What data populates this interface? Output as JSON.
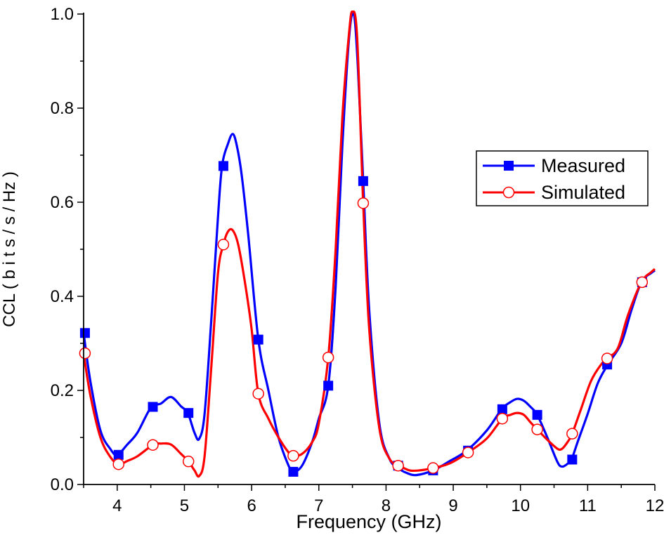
{
  "chart_data": {
    "type": "line",
    "title": "",
    "xlabel": "Frequency (GHz)",
    "ylabel": "CCL ( b i t s / s / Hz )",
    "xlim": [
      3.5,
      12
    ],
    "ylim": [
      0,
      1.0
    ],
    "x_ticks": [
      4,
      5,
      6,
      7,
      8,
      9,
      10,
      11,
      12
    ],
    "y_ticks": [
      0.0,
      0.2,
      0.4,
      0.6,
      0.8,
      1.0
    ],
    "x_tick_labels": [
      "4",
      "5",
      "6",
      "7",
      "8",
      "9",
      "10",
      "11",
      "12"
    ],
    "y_tick_labels": [
      "0.0",
      "0.2",
      "0.4",
      "0.6",
      "0.8",
      "1.0"
    ],
    "legend_position": "right",
    "grid": false,
    "series": [
      {
        "name": "Measured",
        "color": "#0000ff",
        "marker": "square",
        "x": [
          3.5,
          3.6,
          3.75,
          3.9,
          4.0,
          4.15,
          4.3,
          4.5,
          4.65,
          4.8,
          4.95,
          5.05,
          5.15,
          5.22,
          5.3,
          5.4,
          5.5,
          5.56,
          5.65,
          5.72,
          5.78,
          5.85,
          5.95,
          6.1,
          6.25,
          6.4,
          6.55,
          6.62,
          6.75,
          6.9,
          7.0,
          7.14,
          7.25,
          7.35,
          7.45,
          7.52,
          7.58,
          7.66,
          7.75,
          7.9,
          8.05,
          8.18,
          8.3,
          8.45,
          8.7,
          8.95,
          9.2,
          9.5,
          9.72,
          9.85,
          9.95,
          10.05,
          10.15,
          10.25,
          10.4,
          10.55,
          10.62,
          10.7,
          10.76,
          10.85,
          11.0,
          11.15,
          11.3,
          11.5,
          11.65,
          11.8,
          11.95,
          12.0
        ],
        "y": [
          0.322,
          0.22,
          0.115,
          0.075,
          0.063,
          0.085,
          0.11,
          0.163,
          0.172,
          0.186,
          0.166,
          0.152,
          0.11,
          0.097,
          0.15,
          0.35,
          0.57,
          0.677,
          0.725,
          0.745,
          0.72,
          0.66,
          0.53,
          0.308,
          0.2,
          0.1,
          0.04,
          0.027,
          0.04,
          0.09,
          0.14,
          0.21,
          0.42,
          0.72,
          0.95,
          1.0,
          0.89,
          0.645,
          0.37,
          0.13,
          0.055,
          0.035,
          0.025,
          0.02,
          0.03,
          0.05,
          0.072,
          0.115,
          0.16,
          0.175,
          0.182,
          0.178,
          0.165,
          0.148,
          0.1,
          0.048,
          0.038,
          0.044,
          0.053,
          0.09,
          0.15,
          0.215,
          0.255,
          0.3,
          0.37,
          0.43,
          0.45,
          0.455
        ]
      },
      {
        "name": "Simulated",
        "color": "#ff0000",
        "marker": "circle",
        "x": [
          3.5,
          3.6,
          3.75,
          3.9,
          4.02,
          4.15,
          4.3,
          4.53,
          4.65,
          4.8,
          4.95,
          5.06,
          5.15,
          5.22,
          5.3,
          5.4,
          5.5,
          5.58,
          5.65,
          5.72,
          5.8,
          5.9,
          6.0,
          6.1,
          6.25,
          6.4,
          6.55,
          6.62,
          6.75,
          6.9,
          7.0,
          7.14,
          7.25,
          7.35,
          7.45,
          7.5,
          7.57,
          7.66,
          7.75,
          7.9,
          8.05,
          8.2,
          8.35,
          8.5,
          8.7,
          8.95,
          9.22,
          9.5,
          9.73,
          9.85,
          9.95,
          10.05,
          10.15,
          10.25,
          10.4,
          10.55,
          10.62,
          10.7,
          10.77,
          10.9,
          11.05,
          11.2,
          11.29,
          11.45,
          11.6,
          11.8,
          11.95,
          12.0
        ],
        "y": [
          0.279,
          0.19,
          0.1,
          0.058,
          0.043,
          0.05,
          0.06,
          0.084,
          0.087,
          0.085,
          0.065,
          0.049,
          0.03,
          0.018,
          0.06,
          0.25,
          0.45,
          0.51,
          0.538,
          0.54,
          0.51,
          0.43,
          0.33,
          0.193,
          0.14,
          0.1,
          0.068,
          0.061,
          0.065,
          0.09,
          0.13,
          0.27,
          0.5,
          0.78,
          0.96,
          1.005,
          0.95,
          0.598,
          0.33,
          0.12,
          0.055,
          0.04,
          0.03,
          0.03,
          0.035,
          0.045,
          0.068,
          0.098,
          0.14,
          0.148,
          0.152,
          0.148,
          0.132,
          0.117,
          0.095,
          0.076,
          0.076,
          0.09,
          0.108,
          0.16,
          0.22,
          0.255,
          0.268,
          0.29,
          0.36,
          0.43,
          0.452,
          0.458
        ]
      }
    ],
    "markers": {
      "Measured": {
        "x": [
          3.52,
          4.02,
          4.53,
          5.06,
          5.58,
          6.1,
          6.62,
          7.14,
          7.66,
          8.18,
          8.7,
          9.22,
          9.73,
          10.25,
          10.77,
          11.29,
          11.81
        ],
        "y": [
          0.322,
          0.063,
          0.165,
          0.152,
          0.677,
          0.308,
          0.027,
          0.21,
          0.645,
          0.04,
          0.03,
          0.072,
          0.16,
          0.148,
          0.053,
          0.255,
          0.43
        ]
      },
      "Simulated": {
        "x": [
          3.52,
          4.02,
          4.53,
          5.06,
          5.58,
          6.1,
          6.62,
          7.14,
          7.66,
          8.18,
          8.7,
          9.22,
          9.73,
          10.25,
          10.77,
          11.29,
          11.81
        ],
        "y": [
          0.279,
          0.043,
          0.084,
          0.049,
          0.51,
          0.193,
          0.061,
          0.27,
          0.598,
          0.04,
          0.035,
          0.068,
          0.14,
          0.117,
          0.108,
          0.268,
          0.43
        ]
      }
    }
  }
}
